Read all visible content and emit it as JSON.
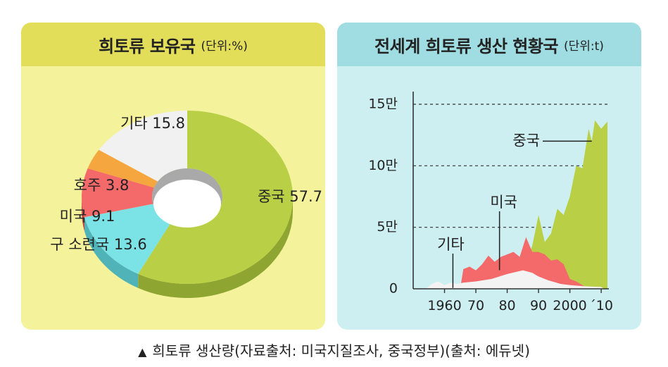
{
  "caption": {
    "marker": "▲",
    "text": "희토류 생산량(자료출처: 미국지질조사, 중국정부)(출처: 에듀넷)"
  },
  "chart_data": [
    {
      "type": "pie",
      "title": "희토류 보유국",
      "unit": "(단위:%)",
      "slices": [
        {
          "name": "중국",
          "label": "중국 57.7",
          "value": 57.7,
          "color": "#b9cf45",
          "side": "#8fa531"
        },
        {
          "name": "구 소련국",
          "label": "구 소련국 13.6",
          "value": 13.6,
          "color": "#7be3e6",
          "side": "#4fb3b8"
        },
        {
          "name": "미국",
          "label": "미국 9.1",
          "value": 9.1,
          "color": "#f46a6a",
          "side": "#c24848"
        },
        {
          "name": "호주",
          "label": "호주 3.8",
          "value": 3.8,
          "color": "#f5a63f",
          "side": "#c27d25"
        },
        {
          "name": "기타",
          "label": "기타 15.8",
          "value": 15.8,
          "color": "#f1f1f1",
          "side": "#b7b7b7"
        }
      ]
    },
    {
      "type": "area",
      "title": "전세계 희토류 생산 현황국",
      "unit": "(단위:t)",
      "ylim": [
        0,
        150000
      ],
      "xlim": [
        1950,
        2012
      ],
      "yticks": [
        {
          "value": 0,
          "label": "0"
        },
        {
          "value": 50000,
          "label": "5만"
        },
        {
          "value": 100000,
          "label": "10만"
        },
        {
          "value": 150000,
          "label": "15만"
        }
      ],
      "xticks": [
        {
          "value": 1960,
          "label": "1960"
        },
        {
          "value": 1970,
          "label": "70"
        },
        {
          "value": 1980,
          "label": "80"
        },
        {
          "value": 1990,
          "label": "90"
        },
        {
          "value": 2000,
          "label": "2000"
        },
        {
          "value": 2010,
          "label": "´10"
        }
      ],
      "series": [
        {
          "name": "기타",
          "color": "#f3f3f3",
          "points": [
            [
              1954,
              0
            ],
            [
              1956,
              4000
            ],
            [
              1958,
              6000
            ],
            [
              1960,
              3000
            ],
            [
              1962,
              5000
            ],
            [
              1964,
              4000
            ],
            [
              1966,
              5000
            ],
            [
              1970,
              6000
            ],
            [
              1975,
              8000
            ],
            [
              1980,
              12000
            ],
            [
              1985,
              15000
            ],
            [
              1988,
              13000
            ],
            [
              1990,
              10000
            ],
            [
              1993,
              7000
            ],
            [
              1997,
              4000
            ],
            [
              2000,
              3000
            ],
            [
              2005,
              2000
            ],
            [
              2010,
              1500
            ],
            [
              2011,
              0
            ]
          ]
        },
        {
          "name": "미국",
          "color": "#f46a6a",
          "points": [
            [
              1965,
              0
            ],
            [
              1966,
              16000
            ],
            [
              1968,
              18000
            ],
            [
              1970,
              15000
            ],
            [
              1972,
              20000
            ],
            [
              1974,
              27000
            ],
            [
              1976,
              22000
            ],
            [
              1978,
              26000
            ],
            [
              1980,
              28000
            ],
            [
              1982,
              30000
            ],
            [
              1984,
              26000
            ],
            [
              1986,
              42000
            ],
            [
              1988,
              30000
            ],
            [
              1990,
              30000
            ],
            [
              1992,
              28000
            ],
            [
              1994,
              23000
            ],
            [
              1996,
              24000
            ],
            [
              1998,
              20000
            ],
            [
              2000,
              8000
            ],
            [
              2002,
              6000
            ],
            [
              2004,
              3000
            ],
            [
              2006,
              0
            ]
          ]
        },
        {
          "name": "중국",
          "color": "#b9cf45",
          "points": [
            [
              1984,
              0
            ],
            [
              1986,
              22000
            ],
            [
              1988,
              35000
            ],
            [
              1990,
              60000
            ],
            [
              1992,
              38000
            ],
            [
              1994,
              45000
            ],
            [
              1996,
              65000
            ],
            [
              1998,
              60000
            ],
            [
              2000,
              75000
            ],
            [
              2002,
              100000
            ],
            [
              2004,
              98000
            ],
            [
              2006,
              130000
            ],
            [
              2007,
              120000
            ],
            [
              2008,
              137000
            ],
            [
              2010,
              130000
            ],
            [
              2012,
              136000
            ],
            [
              2012,
              0
            ]
          ]
        }
      ],
      "annotations": [
        {
          "label": "중국",
          "x": 2007,
          "y": 120000
        },
        {
          "label": "미국",
          "x": 1978,
          "y": 22000
        },
        {
          "label": "기타",
          "x": 1962,
          "y": 3000
        }
      ]
    }
  ]
}
